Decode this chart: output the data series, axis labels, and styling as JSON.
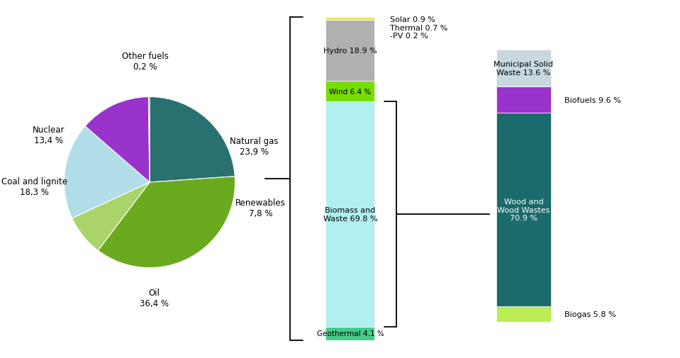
{
  "pie": {
    "labels": [
      "Natural gas",
      "Oil",
      "Renewables",
      "Coal and lignite",
      "Nuclear",
      "Other fuels"
    ],
    "values": [
      23.9,
      36.4,
      7.8,
      18.3,
      13.4,
      0.2
    ],
    "colors": [
      "#297070",
      "#6aaa1e",
      "#aad46a",
      "#b0dde8",
      "#9933cc",
      "#005555"
    ],
    "startangle": 90,
    "label_display": {
      "Natural gas": [
        "Natural gas",
        "23,9 %"
      ],
      "Oil": [
        "Oil",
        "36,4 %"
      ],
      "Renewables": [
        "Renewables",
        "7,8 %"
      ],
      "Coal and lignite": [
        "Coal and lignite",
        "18,3 %"
      ],
      "Nuclear": [
        "Nuclear",
        "13,4 %"
      ],
      "Other fuels": [
        "Other fuels",
        "0,2 %"
      ]
    }
  },
  "bar1": {
    "segments": [
      {
        "label": "Geothermal 4.1 %",
        "value": 4.1,
        "color": "#44cc88",
        "label_inside": true
      },
      {
        "label": "Biomass and\nWaste 69.8 %",
        "value": 69.8,
        "color": "#b0f0f0",
        "label_inside": true
      },
      {
        "label": "Wind 6.4 %",
        "value": 6.4,
        "color": "#77dd00",
        "label_inside": true
      },
      {
        "label": "Hydro 18.9 %",
        "value": 18.9,
        "color": "#b0b0b0",
        "label_inside": true
      },
      {
        "label": "Solar 0.9 %",
        "value": 0.9,
        "color": "#e8e844",
        "label_inside": false
      }
    ],
    "solar_text": "Solar 0.9 %\nThermal 0.7 %\n-PV 0.2 %"
  },
  "bar2": {
    "segments": [
      {
        "label": "Biogas 5.8 %",
        "value": 5.8,
        "color": "#bbed55",
        "label_inside": false,
        "label_side": "right"
      },
      {
        "label": "Wood and\nWood Wastes\n70.9 %",
        "value": 70.9,
        "color": "#1a6b6b",
        "label_inside": true,
        "label_color": "white"
      },
      {
        "label": "Biofuels 9.6 %",
        "value": 9.6,
        "color": "#9933cc",
        "label_inside": false,
        "label_side": "right"
      },
      {
        "label": "Municipal Solid\nWaste 13.6 %",
        "value": 13.6,
        "color": "#c8d8e0",
        "label_inside": true,
        "label_color": "black"
      }
    ]
  },
  "background": "#ffffff"
}
